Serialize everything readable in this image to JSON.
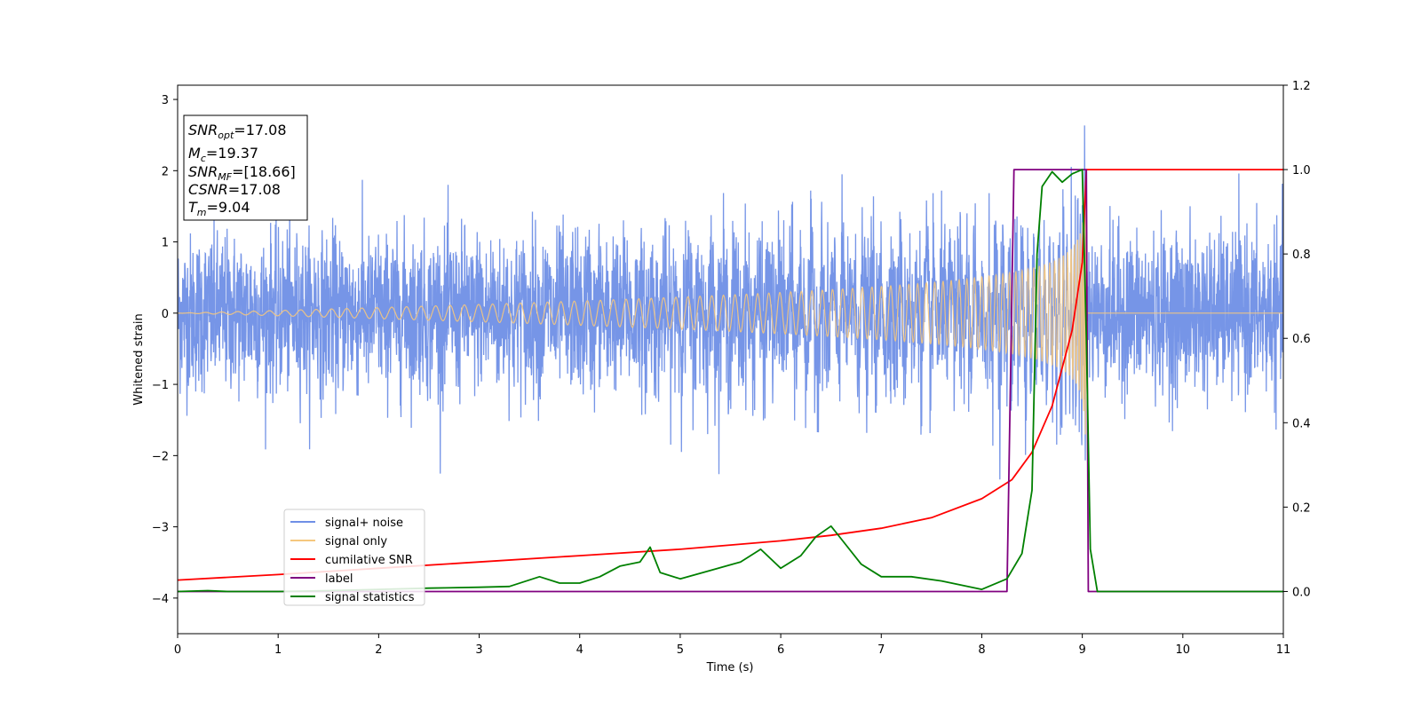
{
  "chart_data": {
    "type": "line",
    "xlabel": "Time (s)",
    "ylabel": "Whitened strain",
    "xlim": [
      0,
      11
    ],
    "ylim": [
      -4.5,
      3.2
    ],
    "y2lim": [
      -0.1,
      1.2
    ],
    "x_ticks": [
      "0",
      "1",
      "2",
      "3",
      "4",
      "5",
      "6",
      "7",
      "8",
      "9",
      "10",
      "11"
    ],
    "y_ticks": [
      "−4",
      "−3",
      "−2",
      "−1",
      "0",
      "1",
      "2",
      "3"
    ],
    "y2_ticks": [
      "0.0",
      "0.2",
      "0.4",
      "0.6",
      "0.8",
      "1.0",
      "1.2"
    ],
    "grid": false,
    "legend_position": "lower-left",
    "annotation": {
      "snr_opt_label": "SNR",
      "snr_opt_sub": "opt",
      "snr_opt_value": "=17.08",
      "mc_label": "M",
      "mc_sub": "c",
      "mc_value": "=19.37",
      "snr_mf_label": "SNR",
      "snr_mf_sub": "MF",
      "snr_mf_value": "=[18.66]",
      "csnr_label": "CSNR",
      "csnr_value": "=17.08",
      "tm_label": "T",
      "tm_sub": "m",
      "tm_value": "=9.04"
    },
    "series": [
      {
        "name": "signal+ noise",
        "color": "#6f8fe6",
        "axis": "left",
        "description_values": {
          "noise_amplitude_typical": 1.1,
          "peak": 2.8,
          "trough": -2.65
        }
      },
      {
        "name": "signal only",
        "color": "#f5c77e",
        "axis": "left",
        "chirp": {
          "end_time": 9.04,
          "peak_amplitude": 2.3
        }
      },
      {
        "name": "cumilative SNR",
        "color": "#ff0000",
        "axis": "right",
        "x": [
          0,
          1,
          2,
          3,
          4,
          5,
          6,
          6.5,
          7,
          7.5,
          8,
          8.3,
          8.5,
          8.7,
          8.9,
          9.0,
          9.04,
          11
        ],
        "y": [
          0.027,
          0.04,
          0.055,
          0.07,
          0.085,
          0.1,
          0.12,
          0.133,
          0.15,
          0.175,
          0.22,
          0.265,
          0.33,
          0.44,
          0.62,
          0.78,
          1.0,
          1.0
        ]
      },
      {
        "name": "label",
        "color": "#800080",
        "axis": "right",
        "x": [
          0,
          8.25,
          8.32,
          9.04,
          9.06,
          11
        ],
        "y": [
          0,
          0,
          1,
          1,
          0,
          0
        ]
      },
      {
        "name": "signal statistics",
        "color": "#008000",
        "axis": "right",
        "x": [
          0,
          0.3,
          0.5,
          1,
          1.5,
          2,
          2.5,
          3,
          3.3,
          3.6,
          3.8,
          4,
          4.2,
          4.4,
          4.6,
          4.7,
          4.8,
          5,
          5.3,
          5.6,
          5.8,
          6,
          6.2,
          6.35,
          6.5,
          6.6,
          6.8,
          7,
          7.3,
          7.6,
          8,
          8.25,
          8.4,
          8.5,
          8.55,
          8.6,
          8.7,
          8.8,
          8.9,
          9.0,
          9.04,
          9.08,
          9.15,
          11
        ],
        "y": [
          0,
          0.002,
          0.0,
          0.0,
          0.002,
          0.005,
          0.008,
          0.01,
          0.012,
          0.035,
          0.02,
          0.02,
          0.035,
          0.06,
          0.07,
          0.105,
          0.045,
          0.03,
          0.05,
          0.07,
          0.1,
          0.055,
          0.085,
          0.13,
          0.155,
          0.125,
          0.065,
          0.035,
          0.035,
          0.025,
          0.005,
          0.03,
          0.09,
          0.24,
          0.8,
          0.96,
          0.995,
          0.97,
          0.99,
          1.0,
          0.6,
          0.1,
          0.0,
          0.0
        ]
      }
    ]
  }
}
